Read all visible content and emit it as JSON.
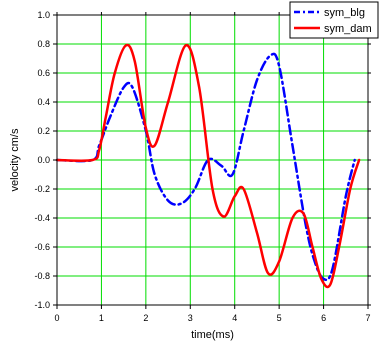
{
  "colors": {
    "grid": "#00dd00",
    "frame": "#000000",
    "series_blg": "#0000ff",
    "series_dam": "#ff0000",
    "background": "#ffffff"
  },
  "chart_data": {
    "type": "line",
    "title": "",
    "xlabel": "time(ms)",
    "ylabel": "velocity cm/s",
    "xlim": [
      0,
      7
    ],
    "ylim": [
      -1.0,
      1.0
    ],
    "grid": true,
    "legend_position": "top-right",
    "xticks": [
      "0",
      "1",
      "2",
      "3",
      "4",
      "5",
      "6",
      "7"
    ],
    "yticks": [
      "1.0",
      "0.8",
      "0.6",
      "0.4",
      "0.2",
      "0.0",
      "-0.2",
      "-0.4",
      "-0.6",
      "-0.8",
      "-1.0"
    ],
    "series": [
      {
        "name": "sym_blg",
        "style": "dash-dot",
        "x": [
          0,
          0.8,
          0.95,
          1.2,
          1.5,
          1.7,
          2.0,
          2.2,
          2.5,
          2.8,
          3.1,
          3.4,
          3.7,
          3.95,
          4.2,
          4.5,
          4.8,
          5.0,
          5.3,
          5.6,
          5.8,
          6.0,
          6.2,
          6.5,
          6.7
        ],
        "y": [
          0,
          0.0,
          0.1,
          0.3,
          0.5,
          0.5,
          0.2,
          -0.1,
          -0.28,
          -0.3,
          -0.2,
          0.0,
          -0.04,
          -0.1,
          0.2,
          0.55,
          0.72,
          0.65,
          0.1,
          -0.45,
          -0.7,
          -0.82,
          -0.75,
          -0.25,
          0.0
        ]
      },
      {
        "name": "sym_dam",
        "style": "solid",
        "x": [
          0,
          0.8,
          0.95,
          1.1,
          1.3,
          1.55,
          1.75,
          2.0,
          2.2,
          2.5,
          2.9,
          3.2,
          3.5,
          3.75,
          4.0,
          4.2,
          4.5,
          4.75,
          5.0,
          5.3,
          5.55,
          5.75,
          5.95,
          6.15,
          6.35,
          6.6,
          6.8
        ],
        "y": [
          0,
          0.0,
          0.07,
          0.3,
          0.6,
          0.79,
          0.68,
          0.22,
          0.1,
          0.4,
          0.79,
          0.5,
          -0.2,
          -0.39,
          -0.25,
          -0.2,
          -0.5,
          -0.78,
          -0.7,
          -0.4,
          -0.37,
          -0.6,
          -0.82,
          -0.86,
          -0.6,
          -0.2,
          0.0
        ]
      }
    ]
  }
}
